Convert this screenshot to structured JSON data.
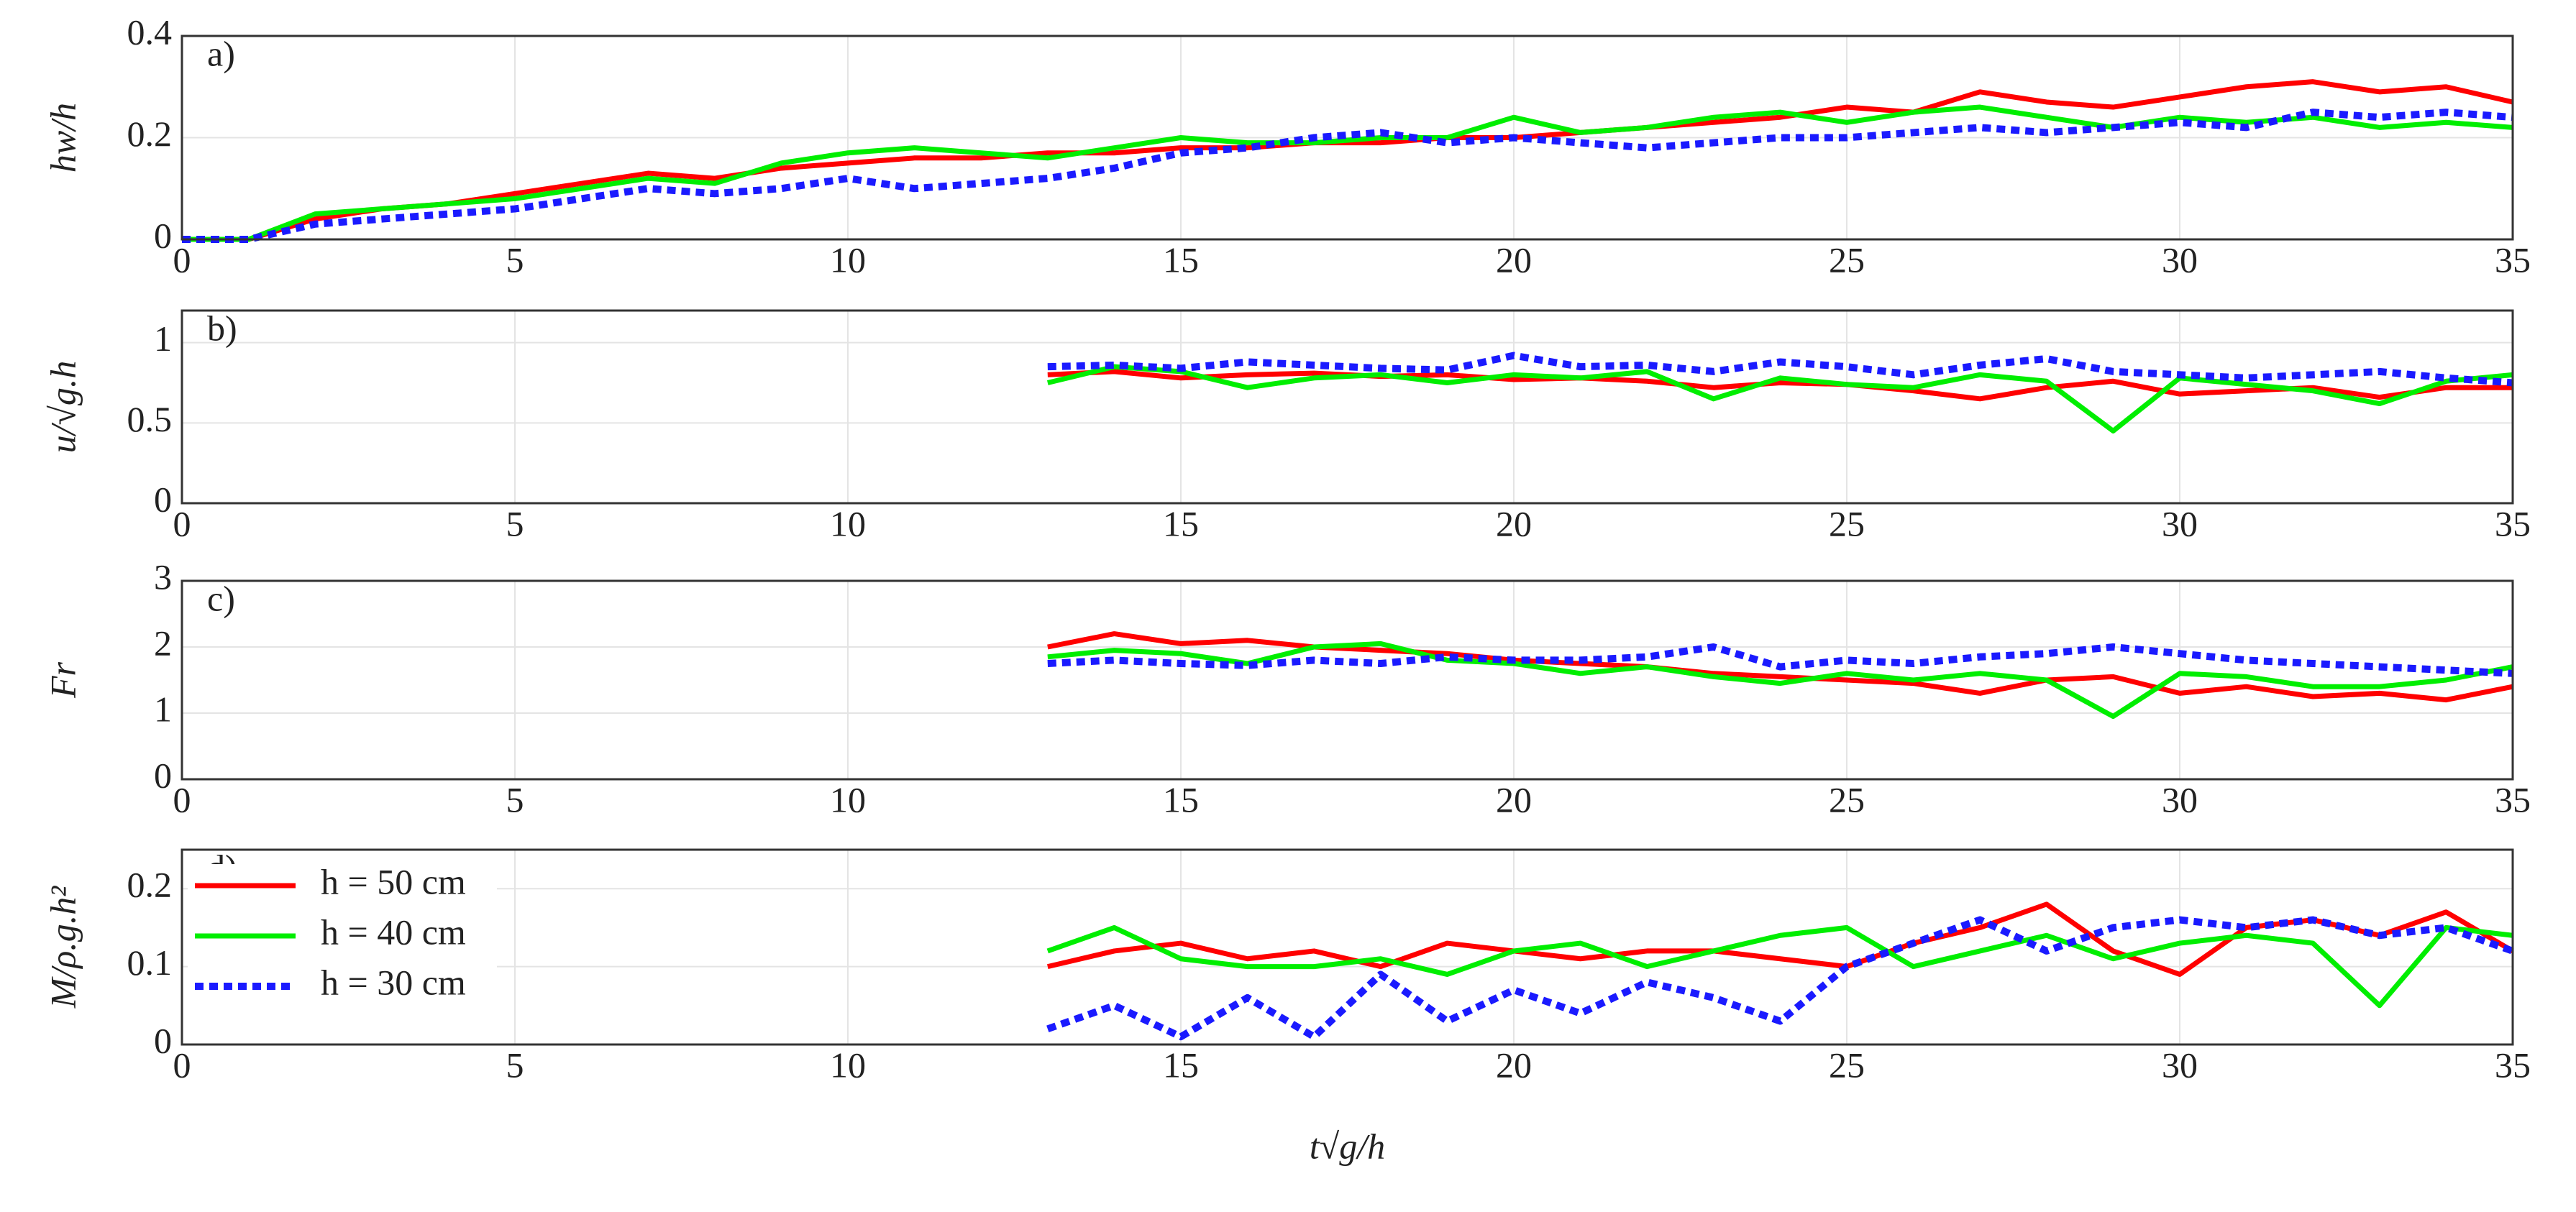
{
  "chart_data": [
    {
      "type": "line",
      "title": "a)",
      "y_label": "hw/h",
      "xlim": [
        0,
        35
      ],
      "xticks": [
        0,
        5,
        10,
        15,
        20,
        25,
        30,
        35
      ],
      "ylim": [
        0,
        0.4
      ],
      "yticks": [
        0,
        0.2,
        0.4
      ],
      "grid": true,
      "x": [
        0,
        1,
        2,
        3,
        4,
        5,
        6,
        7,
        8,
        9,
        10,
        11,
        12,
        13,
        14,
        15,
        16,
        17,
        18,
        19,
        20,
        21,
        22,
        23,
        24,
        25,
        26,
        27,
        28,
        29,
        30,
        31,
        32,
        33,
        34,
        35
      ],
      "series": [
        {
          "color": "#ff0000",
          "style": "solid",
          "values": [
            0,
            0,
            0.04,
            0.06,
            0.07,
            0.09,
            0.11,
            0.13,
            0.12,
            0.14,
            0.15,
            0.16,
            0.16,
            0.17,
            0.17,
            0.18,
            0.18,
            0.19,
            0.19,
            0.2,
            0.2,
            0.21,
            0.22,
            0.23,
            0.24,
            0.26,
            0.25,
            0.29,
            0.27,
            0.26,
            0.28,
            0.3,
            0.31,
            0.29,
            0.3,
            0.27
          ]
        },
        {
          "color": "#00ee00",
          "style": "solid",
          "values": [
            0,
            0,
            0.05,
            0.06,
            0.07,
            0.08,
            0.1,
            0.12,
            0.11,
            0.15,
            0.17,
            0.18,
            0.17,
            0.16,
            0.18,
            0.2,
            0.19,
            0.19,
            0.2,
            0.2,
            0.24,
            0.21,
            0.22,
            0.24,
            0.25,
            0.23,
            0.25,
            0.26,
            0.24,
            0.22,
            0.24,
            0.23,
            0.24,
            0.22,
            0.23,
            0.22
          ]
        },
        {
          "color": "#1a1aff",
          "style": "dashed",
          "values": [
            0,
            0,
            0.03,
            0.04,
            0.05,
            0.06,
            0.08,
            0.1,
            0.09,
            0.1,
            0.12,
            0.1,
            0.11,
            0.12,
            0.14,
            0.17,
            0.18,
            0.2,
            0.21,
            0.19,
            0.2,
            0.19,
            0.18,
            0.19,
            0.2,
            0.2,
            0.21,
            0.22,
            0.21,
            0.22,
            0.23,
            0.22,
            0.25,
            0.24,
            0.25,
            0.24
          ]
        }
      ]
    },
    {
      "type": "line",
      "title": "b)",
      "y_label": "u/√g.h",
      "xlim": [
        0,
        35
      ],
      "xticks": [
        0,
        5,
        10,
        15,
        20,
        25,
        30,
        35
      ],
      "ylim": [
        0,
        1.2
      ],
      "yticks": [
        0,
        0.5,
        1
      ],
      "grid": true,
      "x": [
        13,
        14,
        15,
        16,
        17,
        18,
        19,
        20,
        21,
        22,
        23,
        24,
        25,
        26,
        27,
        28,
        29,
        30,
        31,
        32,
        33,
        34,
        35
      ],
      "series": [
        {
          "color": "#ff0000",
          "style": "solid",
          "values": [
            0.8,
            0.82,
            0.78,
            0.8,
            0.81,
            0.79,
            0.8,
            0.77,
            0.78,
            0.76,
            0.72,
            0.75,
            0.74,
            0.7,
            0.65,
            0.72,
            0.76,
            0.68,
            0.7,
            0.72,
            0.66,
            0.72,
            0.72
          ]
        },
        {
          "color": "#00ee00",
          "style": "solid",
          "values": [
            0.75,
            0.85,
            0.82,
            0.72,
            0.78,
            0.8,
            0.75,
            0.8,
            0.78,
            0.82,
            0.65,
            0.78,
            0.74,
            0.72,
            0.8,
            0.76,
            0.45,
            0.78,
            0.74,
            0.7,
            0.62,
            0.76,
            0.8
          ]
        },
        {
          "color": "#1a1aff",
          "style": "dashed",
          "values": [
            0.85,
            0.86,
            0.84,
            0.88,
            0.86,
            0.84,
            0.83,
            0.92,
            0.85,
            0.86,
            0.82,
            0.88,
            0.85,
            0.8,
            0.86,
            0.9,
            0.82,
            0.8,
            0.78,
            0.8,
            0.82,
            0.78,
            0.75
          ]
        }
      ]
    },
    {
      "type": "line",
      "title": "c)",
      "y_label": "Fr",
      "xlim": [
        0,
        35
      ],
      "xticks": [
        0,
        5,
        10,
        15,
        20,
        25,
        30,
        35
      ],
      "ylim": [
        0,
        3
      ],
      "yticks": [
        0,
        1,
        2,
        3
      ],
      "grid": true,
      "x": [
        13,
        14,
        15,
        16,
        17,
        18,
        19,
        20,
        21,
        22,
        23,
        24,
        25,
        26,
        27,
        28,
        29,
        30,
        31,
        32,
        33,
        34,
        35
      ],
      "series": [
        {
          "color": "#ff0000",
          "style": "solid",
          "values": [
            2,
            2.2,
            2.05,
            2.1,
            2.0,
            1.95,
            1.9,
            1.8,
            1.75,
            1.7,
            1.6,
            1.55,
            1.5,
            1.45,
            1.3,
            1.5,
            1.55,
            1.3,
            1.4,
            1.25,
            1.3,
            1.2,
            1.4
          ]
        },
        {
          "color": "#00ee00",
          "style": "solid",
          "values": [
            1.85,
            1.95,
            1.9,
            1.75,
            2.0,
            2.05,
            1.8,
            1.75,
            1.6,
            1.7,
            1.55,
            1.45,
            1.6,
            1.5,
            1.6,
            1.5,
            0.95,
            1.6,
            1.55,
            1.4,
            1.4,
            1.5,
            1.7
          ]
        },
        {
          "color": "#1a1aff",
          "style": "dashed",
          "values": [
            1.75,
            1.8,
            1.75,
            1.72,
            1.8,
            1.75,
            1.85,
            1.8,
            1.8,
            1.85,
            2.0,
            1.7,
            1.8,
            1.75,
            1.85,
            1.9,
            2.0,
            1.9,
            1.8,
            1.75,
            1.7,
            1.65,
            1.6
          ]
        }
      ]
    },
    {
      "type": "line",
      "title": "d)",
      "y_label": "M/ρ.g.h²",
      "x_label": "t√g/h",
      "xlim": [
        0,
        35
      ],
      "xticks": [
        0,
        5,
        10,
        15,
        20,
        25,
        30,
        35
      ],
      "ylim": [
        0,
        0.25
      ],
      "yticks": [
        0,
        0.1,
        0.2
      ],
      "grid": true,
      "legend": "upper left",
      "x": [
        13,
        14,
        15,
        16,
        17,
        18,
        19,
        20,
        21,
        22,
        23,
        24,
        25,
        26,
        27,
        28,
        29,
        30,
        31,
        32,
        33,
        34,
        35
      ],
      "series": [
        {
          "name": "h = 50 cm",
          "color": "#ff0000",
          "style": "solid",
          "values": [
            0.1,
            0.12,
            0.13,
            0.11,
            0.12,
            0.1,
            0.13,
            0.12,
            0.11,
            0.12,
            0.12,
            0.11,
            0.1,
            0.13,
            0.15,
            0.18,
            0.12,
            0.09,
            0.15,
            0.16,
            0.14,
            0.17,
            0.12
          ]
        },
        {
          "name": "h = 40 cm",
          "color": "#00ee00",
          "style": "solid",
          "values": [
            0.12,
            0.15,
            0.11,
            0.1,
            0.1,
            0.11,
            0.09,
            0.12,
            0.13,
            0.1,
            0.12,
            0.14,
            0.15,
            0.1,
            0.12,
            0.14,
            0.11,
            0.13,
            0.14,
            0.13,
            0.05,
            0.15,
            0.14
          ]
        },
        {
          "name": "h = 30 cm",
          "color": "#1a1aff",
          "style": "dashed",
          "values": [
            0.02,
            0.05,
            0.01,
            0.06,
            0.01,
            0.09,
            0.03,
            0.07,
            0.04,
            0.08,
            0.06,
            0.03,
            0.1,
            0.13,
            0.16,
            0.12,
            0.15,
            0.16,
            0.15,
            0.16,
            0.14,
            0.15,
            0.12
          ]
        }
      ]
    }
  ]
}
